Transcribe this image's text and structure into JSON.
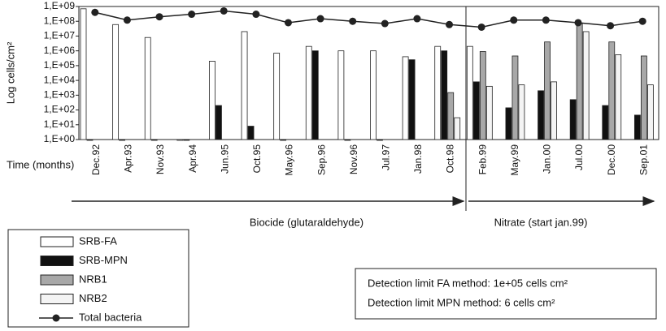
{
  "chart_data": {
    "type": "bar",
    "y_label": "Log cells/cm²",
    "x_label": "Time (months)",
    "yscale": "log",
    "ylim": [
      1,
      1000000000
    ],
    "yticks": [
      {
        "value": 1,
        "label": "1,E+00"
      },
      {
        "value": 10,
        "label": "1,E+01"
      },
      {
        "value": 100,
        "label": "1,E+02"
      },
      {
        "value": 1000,
        "label": "1,E+03"
      },
      {
        "value": 10000,
        "label": "1,E+04"
      },
      {
        "value": 100000,
        "label": "1,E+05"
      },
      {
        "value": 1000000,
        "label": "1,E+06"
      },
      {
        "value": 10000000,
        "label": "1,E+07"
      },
      {
        "value": 100000000,
        "label": "1,E+08"
      },
      {
        "value": 1000000000,
        "label": "1,E+09"
      }
    ],
    "categories": [
      "Dec.92",
      "Apr.93",
      "Nov.93",
      "Apr.94",
      "Jun.95",
      "Oct.95",
      "May.96",
      "Sep.96",
      "Nov.96",
      "Jul.97",
      "Jan.98",
      "Oct.98",
      "Feb.99",
      "May.99",
      "Jan.00",
      "Jul.00",
      "Dec.00",
      "Sep.01"
    ],
    "series": [
      {
        "name": "SRB-FA",
        "color": "#ffffff",
        "values": [
          700000000,
          60000000,
          8000000,
          1,
          200000,
          20000000,
          700000,
          2000000,
          1000000,
          1000000,
          400000,
          2000000,
          2000000,
          null,
          null,
          null,
          null,
          null
        ]
      },
      {
        "name": "SRB-MPN",
        "color": "#111111",
        "values": [
          1,
          1,
          1,
          1,
          200,
          8,
          1,
          1000000,
          1,
          1,
          250000,
          1000000,
          8000,
          140,
          2000,
          500,
          200,
          45
        ]
      },
      {
        "name": "NRB1",
        "color": "#a8a8a8",
        "values": [
          null,
          null,
          null,
          null,
          null,
          null,
          null,
          null,
          null,
          null,
          null,
          1500,
          900000,
          450000,
          4000000,
          70000000,
          4000000,
          450000
        ]
      },
      {
        "name": "NRB2",
        "color": "#f4f4f4",
        "values": [
          null,
          null,
          null,
          null,
          null,
          null,
          null,
          null,
          null,
          null,
          null,
          30,
          4000,
          5000,
          8000,
          20000000,
          550000,
          5000
        ]
      },
      {
        "name": "Total bacteria",
        "type": "line",
        "color": "#222222",
        "values": [
          400000000,
          120000000,
          200000000,
          300000000,
          500000000,
          300000000,
          80000000,
          150000000,
          100000000,
          70000000,
          150000000,
          60000000,
          40000000,
          120000000,
          120000000,
          80000000,
          50000000,
          100000000
        ]
      }
    ],
    "phases": [
      "Biocide (glutaraldehyde)",
      "Nitrate (start jan.99)"
    ],
    "annotations": [
      "Detection limit FA method: 1e+05 cells cm²",
      "Detection limit MPN method: 6 cells cm²"
    ]
  }
}
